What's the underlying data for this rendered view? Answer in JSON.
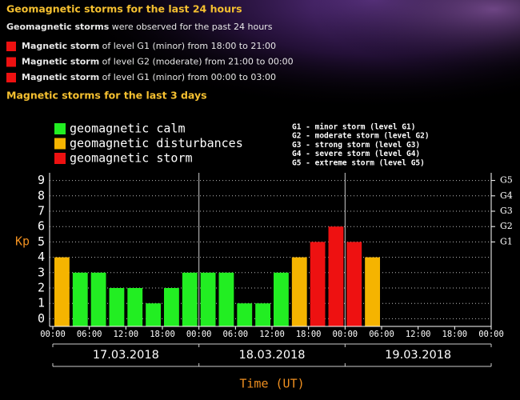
{
  "header": {
    "title": "Geomagnetic storms for the last 24 hours",
    "summary_bold": "Geomagnetic storms",
    "summary_rest": " were observed for the past 24 hours",
    "events": [
      {
        "bold": "Magnetic storm",
        "text": " of level G1 (minor) from 18:00 to 21:00"
      },
      {
        "bold": "Magnetic storm",
        "text": " of level G2 (moderate) from 21:00 to 00:00"
      },
      {
        "bold": "Magnetic storm",
        "text": " of level G1 (minor) from 00:00 to 03:00"
      }
    ],
    "subtitle": "Magnetic storms for the last 3 days"
  },
  "chart_data": {
    "type": "bar",
    "x": [
      0,
      3,
      6,
      9,
      12,
      15,
      18,
      21,
      24,
      27,
      30,
      33,
      36,
      39,
      42,
      45,
      48,
      51
    ],
    "values": [
      4,
      3,
      3,
      2,
      2,
      1,
      2,
      3,
      3,
      3,
      1,
      1,
      3,
      4,
      5,
      6,
      5,
      4
    ],
    "colors": [
      "#f5b400",
      "#22ee22",
      "#22ee22",
      "#22ee22",
      "#22ee22",
      "#22ee22",
      "#22ee22",
      "#22ee22",
      "#22ee22",
      "#22ee22",
      "#22ee22",
      "#22ee22",
      "#22ee22",
      "#f5b400",
      "#ee1111",
      "#ee1111",
      "#ee1111",
      "#f5b400"
    ],
    "xlim": [
      0,
      72
    ],
    "xticks": [
      {
        "value": 0,
        "label": "00:00"
      },
      {
        "value": 6,
        "label": "06:00"
      },
      {
        "value": 12,
        "label": "12:00"
      },
      {
        "value": 18,
        "label": "18:00"
      },
      {
        "value": 24,
        "label": "00:00"
      },
      {
        "value": 30,
        "label": "06:00"
      },
      {
        "value": 36,
        "label": "12:00"
      },
      {
        "value": 42,
        "label": "18:00"
      },
      {
        "value": 48,
        "label": "00:00"
      },
      {
        "value": 54,
        "label": "06:00"
      },
      {
        "value": 60,
        "label": "12:00"
      },
      {
        "value": 66,
        "label": "18:00"
      },
      {
        "value": 72,
        "label": "00:00"
      }
    ],
    "dividers": [
      24,
      48
    ],
    "dates": [
      "17.03.2018",
      "18.03.2018",
      "19.03.2018"
    ],
    "ylim": [
      -0.5,
      9.5
    ],
    "yticks": [
      0,
      1,
      2,
      3,
      4,
      5,
      6,
      7,
      8,
      9
    ],
    "y2lim": [
      -0.5,
      9.5
    ],
    "y2ticks": [
      {
        "value": 5,
        "label": "G1"
      },
      {
        "value": 6,
        "label": "G2"
      },
      {
        "value": 7,
        "label": "G3"
      },
      {
        "value": 8,
        "label": "G4"
      },
      {
        "value": 9,
        "label": "G5"
      }
    ],
    "ylabel": "Kp",
    "xlabel": "Time (UT)",
    "grid": true,
    "legend": [
      {
        "name": "geomagnetic calm",
        "color": "#22ee22"
      },
      {
        "name": "geomagnetic disturbances",
        "color": "#f5b400"
      },
      {
        "name": "geomagnetic storm",
        "color": "#ee1111"
      }
    ],
    "notes": [
      "G1 - minor storm (level G1)",
      "G2 - moderate storm (level G2)",
      "G3 - strong storm (level G3)",
      "G4 - severe storm (level G4)",
      "G5 - extreme storm (level G5)"
    ]
  }
}
